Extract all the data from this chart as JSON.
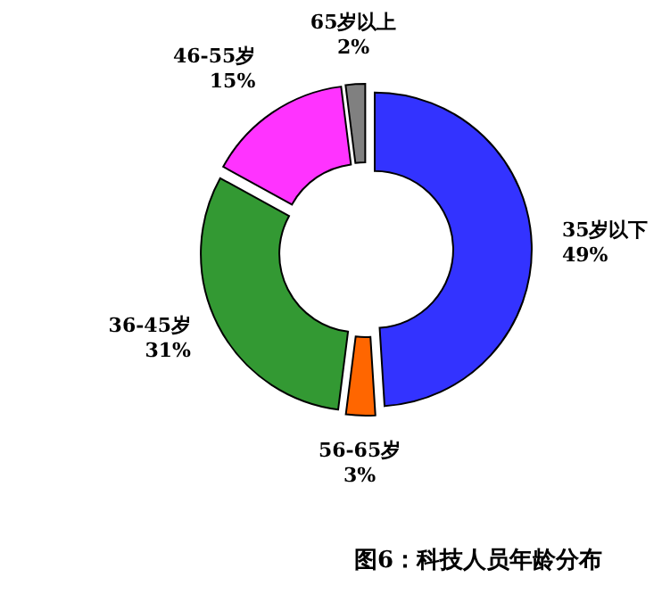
{
  "chart_data": {
    "type": "donut",
    "title": "图6：科技人员年龄分布",
    "categories": [
      "35岁以下",
      "56-65岁",
      "36-45岁",
      "46-55岁",
      "65岁以上"
    ],
    "values": [
      49,
      3,
      31,
      15,
      2
    ],
    "value_labels": [
      "49%",
      "3%",
      "31%",
      "15%",
      "2%"
    ],
    "colors": [
      "#3333ff",
      "#ff6600",
      "#339933",
      "#ff33ff",
      "#808080"
    ]
  }
}
